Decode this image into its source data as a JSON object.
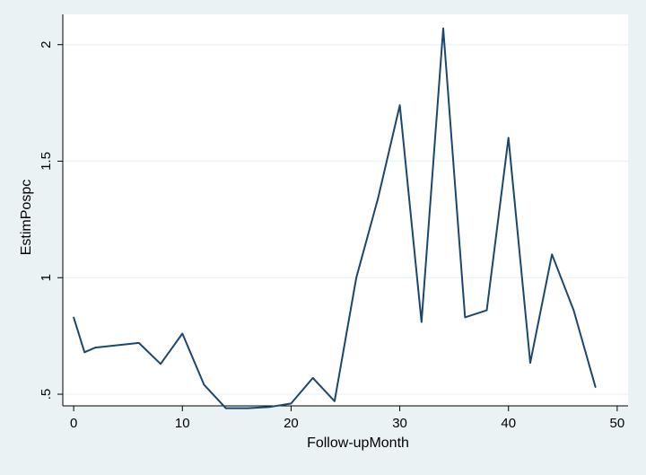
{
  "chart_data": {
    "type": "line",
    "title": "",
    "xlabel": "Follow-upMonth",
    "ylabel": "EstimPospc",
    "xlim": [
      -1,
      51
    ],
    "ylim": [
      0.45,
      2.13
    ],
    "xticks": [
      0,
      10,
      20,
      30,
      40,
      50
    ],
    "yticks": [
      0.5,
      1,
      1.5,
      2
    ],
    "ytick_labels": [
      ".5",
      "1",
      "1.5",
      "2"
    ],
    "grid": "horizontal",
    "legend": "none",
    "colors": {
      "line": "#1a476f",
      "plot_bg": "#ffffff",
      "outer_bg": "#eaf2f3",
      "grid": "#eaf2f3"
    },
    "series": [
      {
        "x": [
          0,
          1,
          2,
          4,
          6,
          8,
          10,
          12,
          14,
          16,
          18,
          20,
          22,
          24,
          26,
          28,
          30,
          32,
          34,
          36,
          38,
          40,
          42,
          44,
          46,
          48
        ],
        "y": [
          0.83,
          0.68,
          0.7,
          0.71,
          0.72,
          0.63,
          0.76,
          0.54,
          0.44,
          0.44,
          0.445,
          0.46,
          0.57,
          0.47,
          1.0,
          1.34,
          1.74,
          0.81,
          2.07,
          0.83,
          0.86,
          1.6,
          0.635,
          1.1,
          0.86,
          0.53
        ]
      }
    ]
  }
}
